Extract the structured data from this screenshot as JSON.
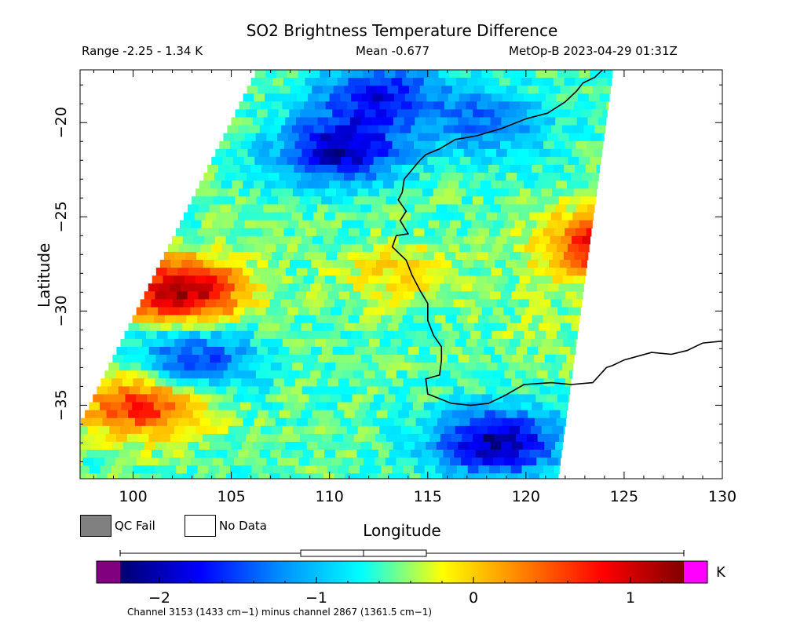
{
  "chart_data": {
    "type": "heatmap",
    "title": "SO2 Brightness Temperature Difference",
    "range_text": "Range -2.25 - 1.34 K",
    "mean_text": "Mean -0.677",
    "satellite_text": "MetOp-B 2023-04-29 01:31Z",
    "xlabel": "Longitude",
    "ylabel": "Latitude",
    "xlim": [
      97.3,
      130
    ],
    "ylim": [
      -38.9,
      -17.2
    ],
    "x_ticks": [
      100,
      105,
      110,
      115,
      120,
      125,
      130
    ],
    "y_ticks": [
      -20,
      -25,
      -30,
      -35
    ],
    "x_tick_labels": [
      "100",
      "105",
      "110",
      "115",
      "120",
      "125",
      "130"
    ],
    "y_tick_labels": [
      "−20",
      "−25",
      "−30",
      "−35"
    ],
    "swath_corners": [
      [
        106.2,
        -17.2
      ],
      [
        124.4,
        -17.2
      ],
      [
        121.6,
        -38.9
      ],
      [
        95.8,
        -38.9
      ]
    ],
    "colorbar": {
      "min": -2.25,
      "max": 1.34,
      "unit": "K",
      "ticks": [
        -2,
        -1,
        0,
        1
      ],
      "tick_labels": [
        "−2",
        "−1",
        "0",
        "1"
      ],
      "below_color": "#800080",
      "above_color": "#ff00ff",
      "colors": [
        "#000070",
        "#0000ff",
        "#0090ff",
        "#00ffff",
        "#ffff00",
        "#ff8000",
        "#ff0000",
        "#800000"
      ],
      "boxplot": {
        "whisker_low": -2.25,
        "q1": -1.1,
        "median": -0.7,
        "q3": -0.3,
        "whisker_high": 1.34
      }
    },
    "features": [
      {
        "kind": "low",
        "lon": 110.5,
        "lat": -21.5,
        "value": -2.0
      },
      {
        "kind": "low",
        "lon": 112.5,
        "lat": -18.5,
        "value": -1.7
      },
      {
        "kind": "low",
        "lon": 118.5,
        "lat": -37.0,
        "value": -2.1
      },
      {
        "kind": "low",
        "lon": 103.0,
        "lat": -32.5,
        "value": -1.6
      },
      {
        "kind": "low",
        "lon": 118.0,
        "lat": -20.0,
        "value": -1.3
      },
      {
        "kind": "high",
        "lon": 124.0,
        "lat": -26.5,
        "value": 0.9
      },
      {
        "kind": "high",
        "lon": 102.5,
        "lat": -29.0,
        "value": 1.2
      },
      {
        "kind": "high",
        "lon": 100.5,
        "lat": -35.0,
        "value": 0.7
      },
      {
        "kind": "mid",
        "lon": 113.5,
        "lat": -28.0,
        "value": -0.1
      },
      {
        "kind": "mid",
        "lon": 121.0,
        "lat": -31.0,
        "value": -0.4
      }
    ],
    "coastline": [
      [
        123.9,
        -17.2
      ],
      [
        123.5,
        -17.6
      ],
      [
        122.9,
        -17.9
      ],
      [
        122.6,
        -18.3
      ],
      [
        122.0,
        -18.9
      ],
      [
        121.1,
        -19.5
      ],
      [
        120.0,
        -19.8
      ],
      [
        118.8,
        -20.3
      ],
      [
        117.5,
        -20.7
      ],
      [
        116.4,
        -20.9
      ],
      [
        115.6,
        -21.4
      ],
      [
        114.9,
        -21.7
      ],
      [
        114.6,
        -22.0
      ],
      [
        114.2,
        -22.5
      ],
      [
        113.8,
        -23.0
      ],
      [
        113.7,
        -23.7
      ],
      [
        113.5,
        -24.1
      ],
      [
        113.9,
        -24.7
      ],
      [
        113.6,
        -25.2
      ],
      [
        114.0,
        -25.9
      ],
      [
        113.4,
        -26.0
      ],
      [
        113.2,
        -26.6
      ],
      [
        113.9,
        -27.3
      ],
      [
        114.2,
        -28.1
      ],
      [
        114.6,
        -28.9
      ],
      [
        115.0,
        -29.6
      ],
      [
        115.0,
        -30.5
      ],
      [
        115.3,
        -31.3
      ],
      [
        115.7,
        -31.9
      ],
      [
        115.7,
        -32.6
      ],
      [
        115.6,
        -33.4
      ],
      [
        114.9,
        -33.6
      ],
      [
        115.0,
        -34.4
      ],
      [
        116.2,
        -34.9
      ],
      [
        117.2,
        -35.0
      ],
      [
        118.1,
        -34.9
      ],
      [
        118.9,
        -34.5
      ],
      [
        119.9,
        -33.9
      ],
      [
        121.3,
        -33.8
      ],
      [
        122.3,
        -33.9
      ],
      [
        123.4,
        -33.8
      ],
      [
        124.1,
        -33.0
      ],
      [
        124.4,
        -32.9
      ],
      [
        125.0,
        -32.6
      ],
      [
        126.4,
        -32.2
      ],
      [
        127.4,
        -32.3
      ],
      [
        128.2,
        -32.1
      ],
      [
        129.0,
        -31.7
      ],
      [
        130.0,
        -31.6
      ]
    ],
    "legend": [
      {
        "label": "QC Fail",
        "color": "#808080"
      },
      {
        "label": "No Data",
        "color": "#ffffff"
      }
    ],
    "footnote": "Channel 3153 (1433 cm−1) minus channel 2867 (1361.5 cm−1)"
  }
}
